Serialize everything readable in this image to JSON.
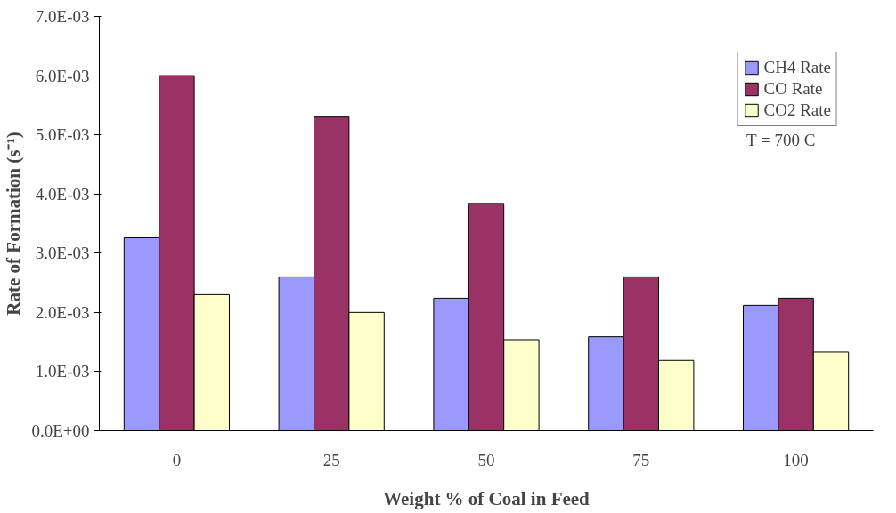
{
  "chart_data": {
    "type": "bar",
    "xlabel": "Weight % of Coal in Feed",
    "ylabel": "Rate of Formation (s⁻¹)",
    "categories": [
      "0",
      "25",
      "50",
      "75",
      "100"
    ],
    "series": [
      {
        "name": "CH4 Rate",
        "color": "#9999ff",
        "values": [
          0.00326,
          0.0026,
          0.00224,
          0.00159,
          0.00212
        ]
      },
      {
        "name": "CO Rate",
        "color": "#993366",
        "values": [
          0.006,
          0.0053,
          0.00384,
          0.0026,
          0.00224
        ]
      },
      {
        "name": "CO2 Rate",
        "color": "#ffffcc",
        "values": [
          0.0023,
          0.002,
          0.00154,
          0.00119,
          0.00133
        ]
      }
    ],
    "ylim": [
      0,
      0.007
    ],
    "yticks": [
      {
        "value": 0,
        "label": "0.0E+00"
      },
      {
        "value": 0.001,
        "label": "1.0E-03"
      },
      {
        "value": 0.002,
        "label": "2.0E-03"
      },
      {
        "value": 0.003,
        "label": "3.0E-03"
      },
      {
        "value": 0.004,
        "label": "4.0E-03"
      },
      {
        "value": 0.005,
        "label": "5.0E-03"
      },
      {
        "value": 0.006,
        "label": "6.0E-03"
      },
      {
        "value": 0.007,
        "label": "7.0E-03"
      }
    ],
    "annotations": [
      "T = 700 C"
    ],
    "legend": "top right",
    "grid": false
  }
}
